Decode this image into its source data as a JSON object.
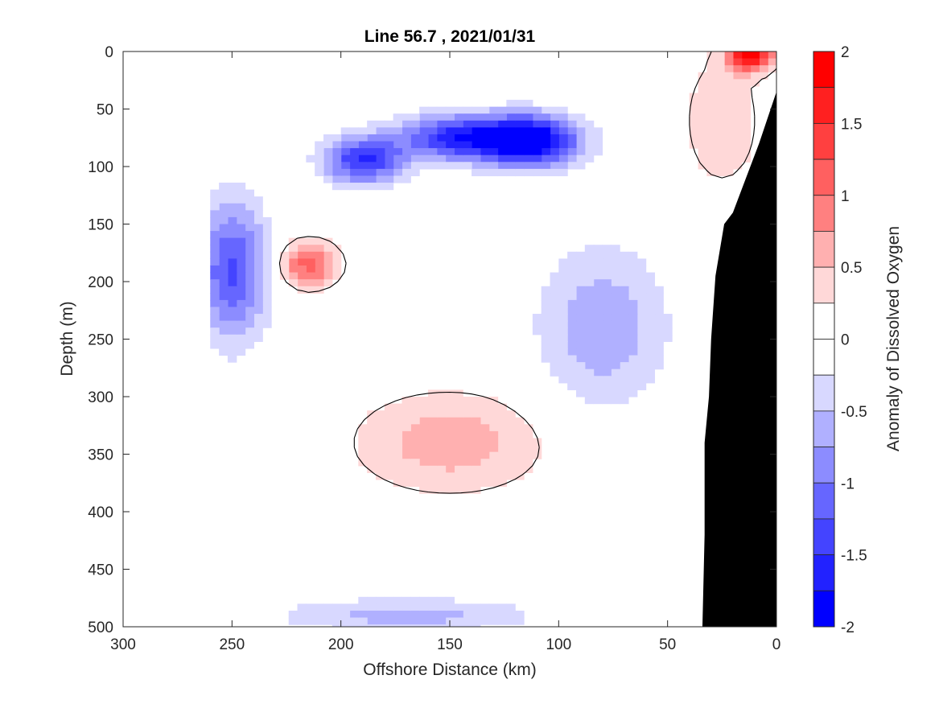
{
  "chart_data": {
    "type": "heatmap",
    "subtype": "filled-contour-section",
    "title": "Line 56.7 , 2021/01/31",
    "xlabel": "Offshore Distance (km)",
    "ylabel": "Depth (m)",
    "xlim": [
      300,
      0
    ],
    "ylim": [
      0,
      500
    ],
    "x_reversed": true,
    "y_reversed": true,
    "x_ticks": [
      300,
      250,
      200,
      150,
      100,
      50,
      0
    ],
    "y_ticks": [
      0,
      50,
      100,
      150,
      200,
      250,
      300,
      350,
      400,
      450,
      500
    ],
    "colorbar": {
      "label": "Anomaly of Dissolved Oxygen",
      "range": [
        -2,
        2
      ],
      "level_step": 0.25,
      "ticks": [
        2,
        1.5,
        1,
        0.5,
        0,
        -0.5,
        -1,
        -1.5,
        -2
      ],
      "tick_labels": [
        "2",
        "1.5",
        "1",
        "0.5",
        "0",
        "-0.5",
        "-1",
        "-1.5",
        "-2"
      ],
      "bands": [
        {
          "from": 1.75,
          "to": 2.0,
          "color": "#ff0000"
        },
        {
          "from": 1.5,
          "to": 1.75,
          "color": "#ff2020"
        },
        {
          "from": 1.25,
          "to": 1.5,
          "color": "#ff4040"
        },
        {
          "from": 1.0,
          "to": 1.25,
          "color": "#ff6060"
        },
        {
          "from": 0.75,
          "to": 1.0,
          "color": "#ff8080"
        },
        {
          "from": 0.5,
          "to": 0.75,
          "color": "#ffb0b0"
        },
        {
          "from": 0.25,
          "to": 0.5,
          "color": "#ffd8d8"
        },
        {
          "from": 0.0,
          "to": 0.25,
          "color": "#ffffff"
        },
        {
          "from": -0.25,
          "to": 0.0,
          "color": "#ffffff"
        },
        {
          "from": -0.5,
          "to": -0.25,
          "color": "#d8d8ff"
        },
        {
          "from": -0.75,
          "to": -0.5,
          "color": "#b0b0ff"
        },
        {
          "from": -1.0,
          "to": -0.75,
          "color": "#8c8cff"
        },
        {
          "from": -1.25,
          "to": -1.0,
          "color": "#6666ff"
        },
        {
          "from": -1.5,
          "to": -1.25,
          "color": "#4444ff"
        },
        {
          "from": -1.75,
          "to": -1.5,
          "color": "#2222ff"
        },
        {
          "from": -2.0,
          "to": -1.75,
          "color": "#0000ff"
        }
      ]
    },
    "data_extent_km": [
      0,
      260
    ],
    "zero_contour_color": "#000000",
    "bathymetry": {
      "color": "#000000",
      "profile": [
        {
          "x": 0,
          "depth": 35
        },
        {
          "x": 8,
          "depth": 80
        },
        {
          "x": 14,
          "depth": 110
        },
        {
          "x": 20,
          "depth": 140
        },
        {
          "x": 24,
          "depth": 150
        },
        {
          "x": 28,
          "depth": 195
        },
        {
          "x": 30,
          "depth": 250
        },
        {
          "x": 31,
          "depth": 300
        },
        {
          "x": 33,
          "depth": 340
        },
        {
          "x": 33,
          "depth": 420
        },
        {
          "x": 34,
          "depth": 500
        }
      ]
    },
    "features": [
      {
        "name": "surface-high-nearshore",
        "x": 12,
        "depth": 2,
        "value": 2.0,
        "spread_km": 10,
        "spread_m": 14
      },
      {
        "name": "nearshore-positive",
        "x": 25,
        "depth": 60,
        "value": 0.5,
        "spread_km": 18,
        "spread_m": 60
      },
      {
        "name": "min-core-east",
        "x": 112,
        "depth": 78,
        "value": -1.9,
        "spread_km": 22,
        "spread_m": 22
      },
      {
        "name": "min-core-mid",
        "x": 145,
        "depth": 75,
        "value": -1.6,
        "spread_km": 30,
        "spread_m": 20
      },
      {
        "name": "min-core-west",
        "x": 190,
        "depth": 95,
        "value": -1.5,
        "spread_km": 18,
        "spread_m": 20
      },
      {
        "name": "negative-lobe-west",
        "x": 250,
        "depth": 190,
        "value": -1.3,
        "spread_km": 16,
        "spread_m": 60
      },
      {
        "name": "max-core-subsurface",
        "x": 215,
        "depth": 185,
        "value": 1.1,
        "spread_km": 14,
        "spread_m": 20
      },
      {
        "name": "positive-deep",
        "x": 150,
        "depth": 340,
        "value": 0.65,
        "spread_km": 45,
        "spread_m": 45
      },
      {
        "name": "negative-offshore-mid",
        "x": 80,
        "depth": 240,
        "value": -0.7,
        "spread_km": 30,
        "spread_m": 70
      },
      {
        "name": "negative-bottom",
        "x": 170,
        "depth": 490,
        "value": -0.6,
        "spread_km": 60,
        "spread_m": 15
      }
    ]
  }
}
